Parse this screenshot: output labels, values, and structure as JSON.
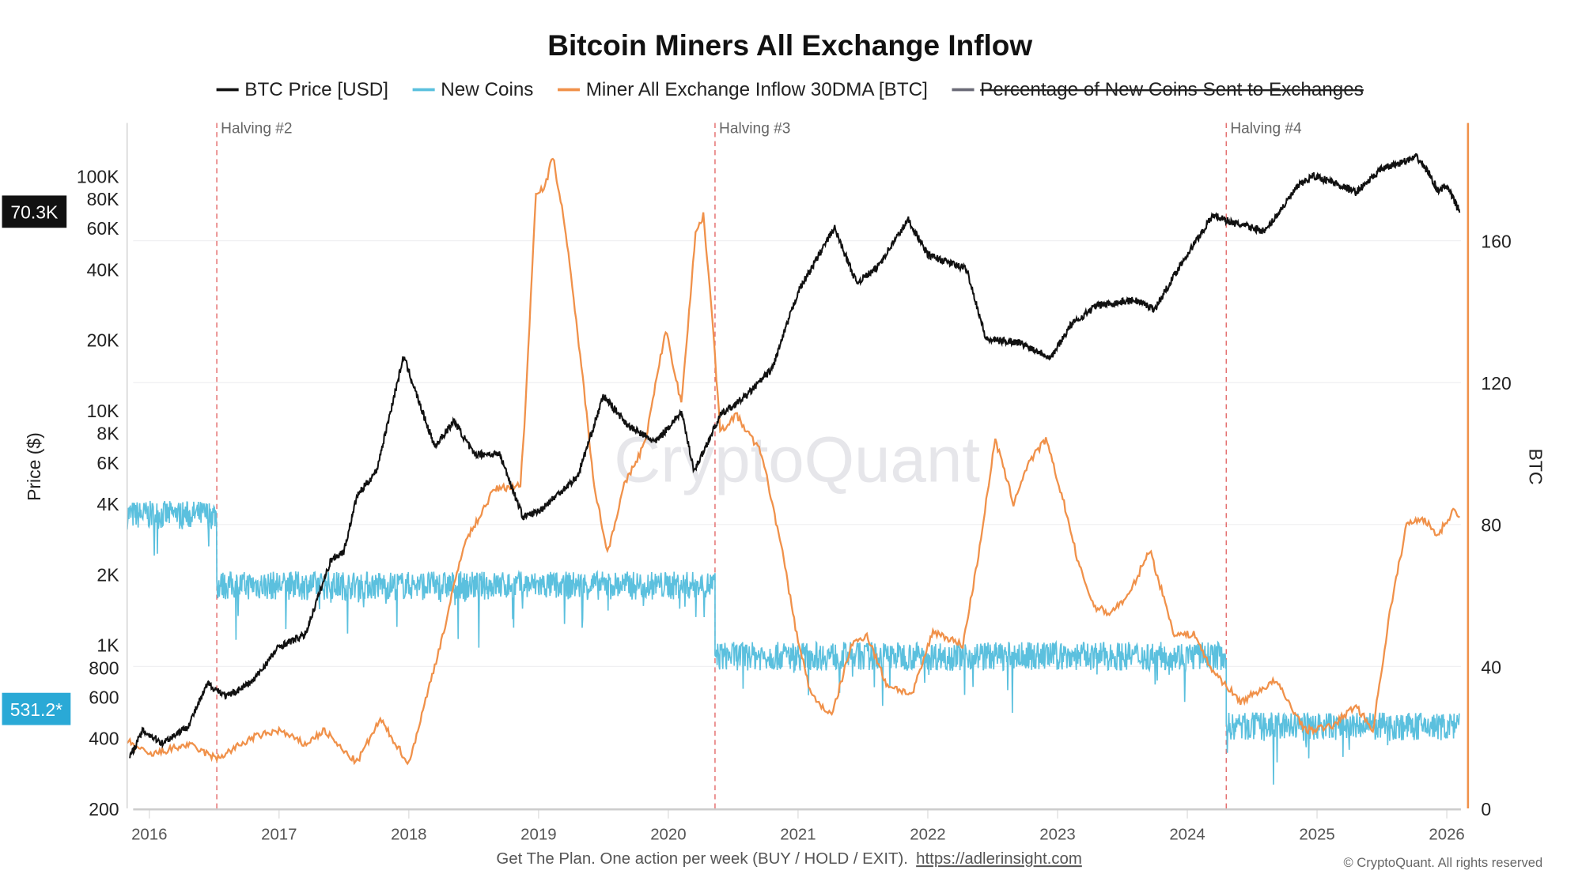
{
  "chart_data": {
    "type": "line",
    "title": "Bitcoin Miners All Exchange Inflow",
    "legend": {
      "placement": "top",
      "items": [
        {
          "label": "BTC Price [USD]",
          "color": "#111111",
          "enabled": true
        },
        {
          "label": "New Coins",
          "color": "#5bc0de",
          "enabled": true
        },
        {
          "label": "Miner All Exchange Inflow 30DMA [BTC]",
          "color": "#f0914a",
          "enabled": true
        },
        {
          "label": "Percentage of New Coins Sent to Exchanges",
          "color": "#6b6b78",
          "enabled": false
        }
      ]
    },
    "y_left": {
      "label": "Price ($)",
      "scale": "log",
      "range": [
        200,
        150000
      ],
      "ticks": [
        "100K",
        "80K",
        "60K",
        "40K",
        "20K",
        "10K",
        "8K",
        "6K",
        "4K",
        "2K",
        "1K",
        "800",
        "600",
        "400",
        "200"
      ],
      "tick_values": [
        100000,
        80000,
        60000,
        40000,
        20000,
        10000,
        8000,
        6000,
        4000,
        2000,
        1000,
        800,
        600,
        400,
        200
      ]
    },
    "y_right": {
      "label": "BTC",
      "scale": "linear",
      "range": [
        0,
        193
      ],
      "ticks": [
        "0",
        "40",
        "80",
        "120",
        "160"
      ],
      "tick_values": [
        0,
        40,
        80,
        120,
        160
      ]
    },
    "x": {
      "range": [
        2015.83,
        2026.1
      ],
      "ticks": [
        "2016",
        "2017",
        "2018",
        "2019",
        "2020",
        "2021",
        "2022",
        "2023",
        "2024",
        "2025",
        "2026"
      ],
      "tick_values": [
        2016,
        2017,
        2018,
        2019,
        2020,
        2021,
        2022,
        2023,
        2024,
        2025,
        2026
      ]
    },
    "grid": true,
    "current_values": {
      "btc_price": "70.3K",
      "new_coins": "531.2*"
    },
    "annotations": [
      {
        "label": "Halving #2",
        "x": 2016.52
      },
      {
        "label": "Halving #3",
        "x": 2020.36
      },
      {
        "label": "Halving #4",
        "x": 2024.3
      }
    ],
    "series": [
      {
        "name": "BTC Price [USD]",
        "axis": "left",
        "color": "#111111",
        "x": [
          2015.85,
          2015.95,
          2016.1,
          2016.3,
          2016.45,
          2016.6,
          2016.8,
          2017.0,
          2017.2,
          2017.4,
          2017.5,
          2017.6,
          2017.75,
          2017.96,
          2018.1,
          2018.2,
          2018.35,
          2018.5,
          2018.7,
          2018.88,
          2019.0,
          2019.3,
          2019.5,
          2019.7,
          2019.9,
          2020.1,
          2020.2,
          2020.4,
          2020.6,
          2020.8,
          2021.0,
          2021.28,
          2021.45,
          2021.6,
          2021.85,
          2022.0,
          2022.3,
          2022.45,
          2022.7,
          2022.95,
          2023.1,
          2023.3,
          2023.6,
          2023.75,
          2023.95,
          2024.2,
          2024.35,
          2024.6,
          2024.85,
          2024.97,
          2025.1,
          2025.3,
          2025.5,
          2025.77,
          2025.85,
          2025.93,
          2026.0,
          2026.1
        ],
        "y": [
          330,
          430,
          380,
          450,
          680,
          600,
          700,
          980,
          1100,
          2300,
          2500,
          4300,
          5500,
          17000,
          10000,
          7000,
          9000,
          6500,
          6500,
          3500,
          3700,
          5200,
          11500,
          8500,
          7300,
          9800,
          5500,
          9500,
          11500,
          15000,
          32000,
          60000,
          35000,
          40000,
          65000,
          46000,
          40000,
          20000,
          19500,
          16800,
          23000,
          28000,
          29500,
          27000,
          42000,
          68000,
          63000,
          58000,
          90000,
          100000,
          95000,
          85000,
          107000,
          120000,
          105000,
          87000,
          90000,
          70300
        ]
      },
      {
        "name": "New Coins",
        "axis": "left",
        "color": "#5bc0de",
        "segments": [
          {
            "from": 2015.83,
            "to": 2016.52,
            "level": 3600
          },
          {
            "from": 2016.52,
            "to": 2020.36,
            "level": 1800
          },
          {
            "from": 2020.36,
            "to": 2024.3,
            "level": 900
          },
          {
            "from": 2024.3,
            "to": 2026.1,
            "level": 450
          }
        ]
      },
      {
        "name": "Miner All Exchange Inflow 30DMA [BTC]",
        "axis": "right",
        "color": "#f0914a",
        "x": [
          2015.83,
          2016.0,
          2016.3,
          2016.52,
          2016.8,
          2017.0,
          2017.2,
          2017.35,
          2017.5,
          2017.6,
          2017.78,
          2018.0,
          2018.27,
          2018.42,
          2018.66,
          2018.86,
          2018.9,
          2018.98,
          2019.05,
          2019.11,
          2019.2,
          2019.32,
          2019.43,
          2019.53,
          2019.66,
          2019.82,
          2019.98,
          2020.1,
          2020.21,
          2020.27,
          2020.33,
          2020.4,
          2020.52,
          2020.72,
          2020.87,
          2020.99,
          2021.1,
          2021.26,
          2021.41,
          2021.53,
          2021.68,
          2021.88,
          2022.04,
          2022.27,
          2022.38,
          2022.52,
          2022.66,
          2022.77,
          2022.91,
          2023.05,
          2023.16,
          2023.28,
          2023.4,
          2023.55,
          2023.71,
          2023.9,
          2024.06,
          2024.17,
          2024.41,
          2024.68,
          2024.91,
          2025.11,
          2025.3,
          2025.43,
          2025.56,
          2025.69,
          2025.81,
          2025.93,
          2026.05,
          2026.1
        ],
        "y": [
          19,
          15,
          18,
          14,
          20,
          22,
          18,
          22,
          16,
          13,
          25,
          12.5,
          50,
          74,
          90,
          91,
          114,
          174,
          175,
          184,
          165,
          128,
          91,
          72,
          91,
          103,
          135,
          114,
          162,
          167,
          143,
          106,
          111,
          100,
          74,
          49,
          32,
          26,
          46,
          49,
          35,
          32,
          50,
          46,
          69,
          104,
          86,
          97,
          104,
          86,
          69,
          57,
          55,
          60,
          73,
          49,
          49,
          40,
          30,
          36,
          22,
          23,
          29,
          22,
          55,
          80,
          82,
          77,
          84,
          82
        ]
      }
    ]
  },
  "watermark": "CryptoQuant",
  "footer": {
    "text": "Get The Plan. One action per week (BUY / HOLD / EXIT).",
    "link": "https://adlerinsight.com",
    "copyright": "© CryptoQuant. All rights reserved"
  }
}
